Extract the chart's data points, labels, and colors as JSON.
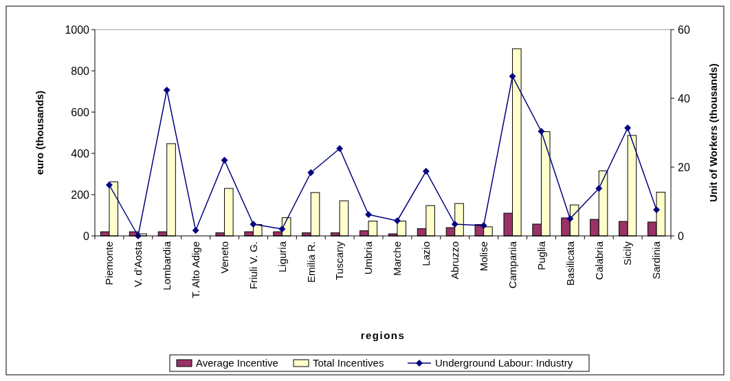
{
  "chart_data": {
    "type": "bar",
    "xlabel": "regions",
    "ylabel": "euro (thousands)",
    "y2label": "Unit of Workers (thousands)",
    "categories": [
      "Piemonte",
      "V. d'Aosta",
      "Lombardia",
      "T. Alto Adige",
      "Veneto",
      "Friuli V. G.",
      "Liguria",
      "Emilia R.",
      "Tuscany",
      "Umbria",
      "Marche",
      "Lazio",
      "Abruzzo",
      "Molise",
      "Campania",
      "Puglia",
      "Basilicata",
      "Calabria",
      "Sicily",
      "Sardinia"
    ],
    "series": [
      {
        "name": "Average Incentive",
        "color": "#993366",
        "values": [
          20,
          20,
          20,
          null,
          15,
          20,
          20,
          15,
          15,
          25,
          10,
          35,
          40,
          55,
          110,
          57,
          87,
          80,
          70,
          67
        ]
      },
      {
        "name": "Total Incentives",
        "color": "#ffffcc",
        "values": [
          262,
          10,
          447,
          null,
          230,
          55,
          88,
          210,
          170,
          72,
          72,
          147,
          157,
          44,
          907,
          505,
          150,
          315,
          487,
          212
        ]
      },
      {
        "name": "Underground Labour: Industry",
        "type": "line",
        "axis": "y2",
        "color": "#000080",
        "marker": "diamond",
        "values": [
          14.8,
          0,
          42.4,
          1.6,
          22,
          3.4,
          2,
          18.4,
          25.4,
          6.2,
          4.4,
          18.8,
          3.4,
          3,
          46.4,
          30.4,
          5,
          13.8,
          31.4,
          7.6
        ]
      }
    ],
    "ylim": [
      0,
      1000
    ],
    "yticks": [
      0,
      200,
      400,
      600,
      800,
      1000
    ],
    "y2lim": [
      0,
      60
    ],
    "y2ticks": [
      0,
      20,
      40,
      60
    ],
    "grid": false,
    "legend": "bottom"
  }
}
